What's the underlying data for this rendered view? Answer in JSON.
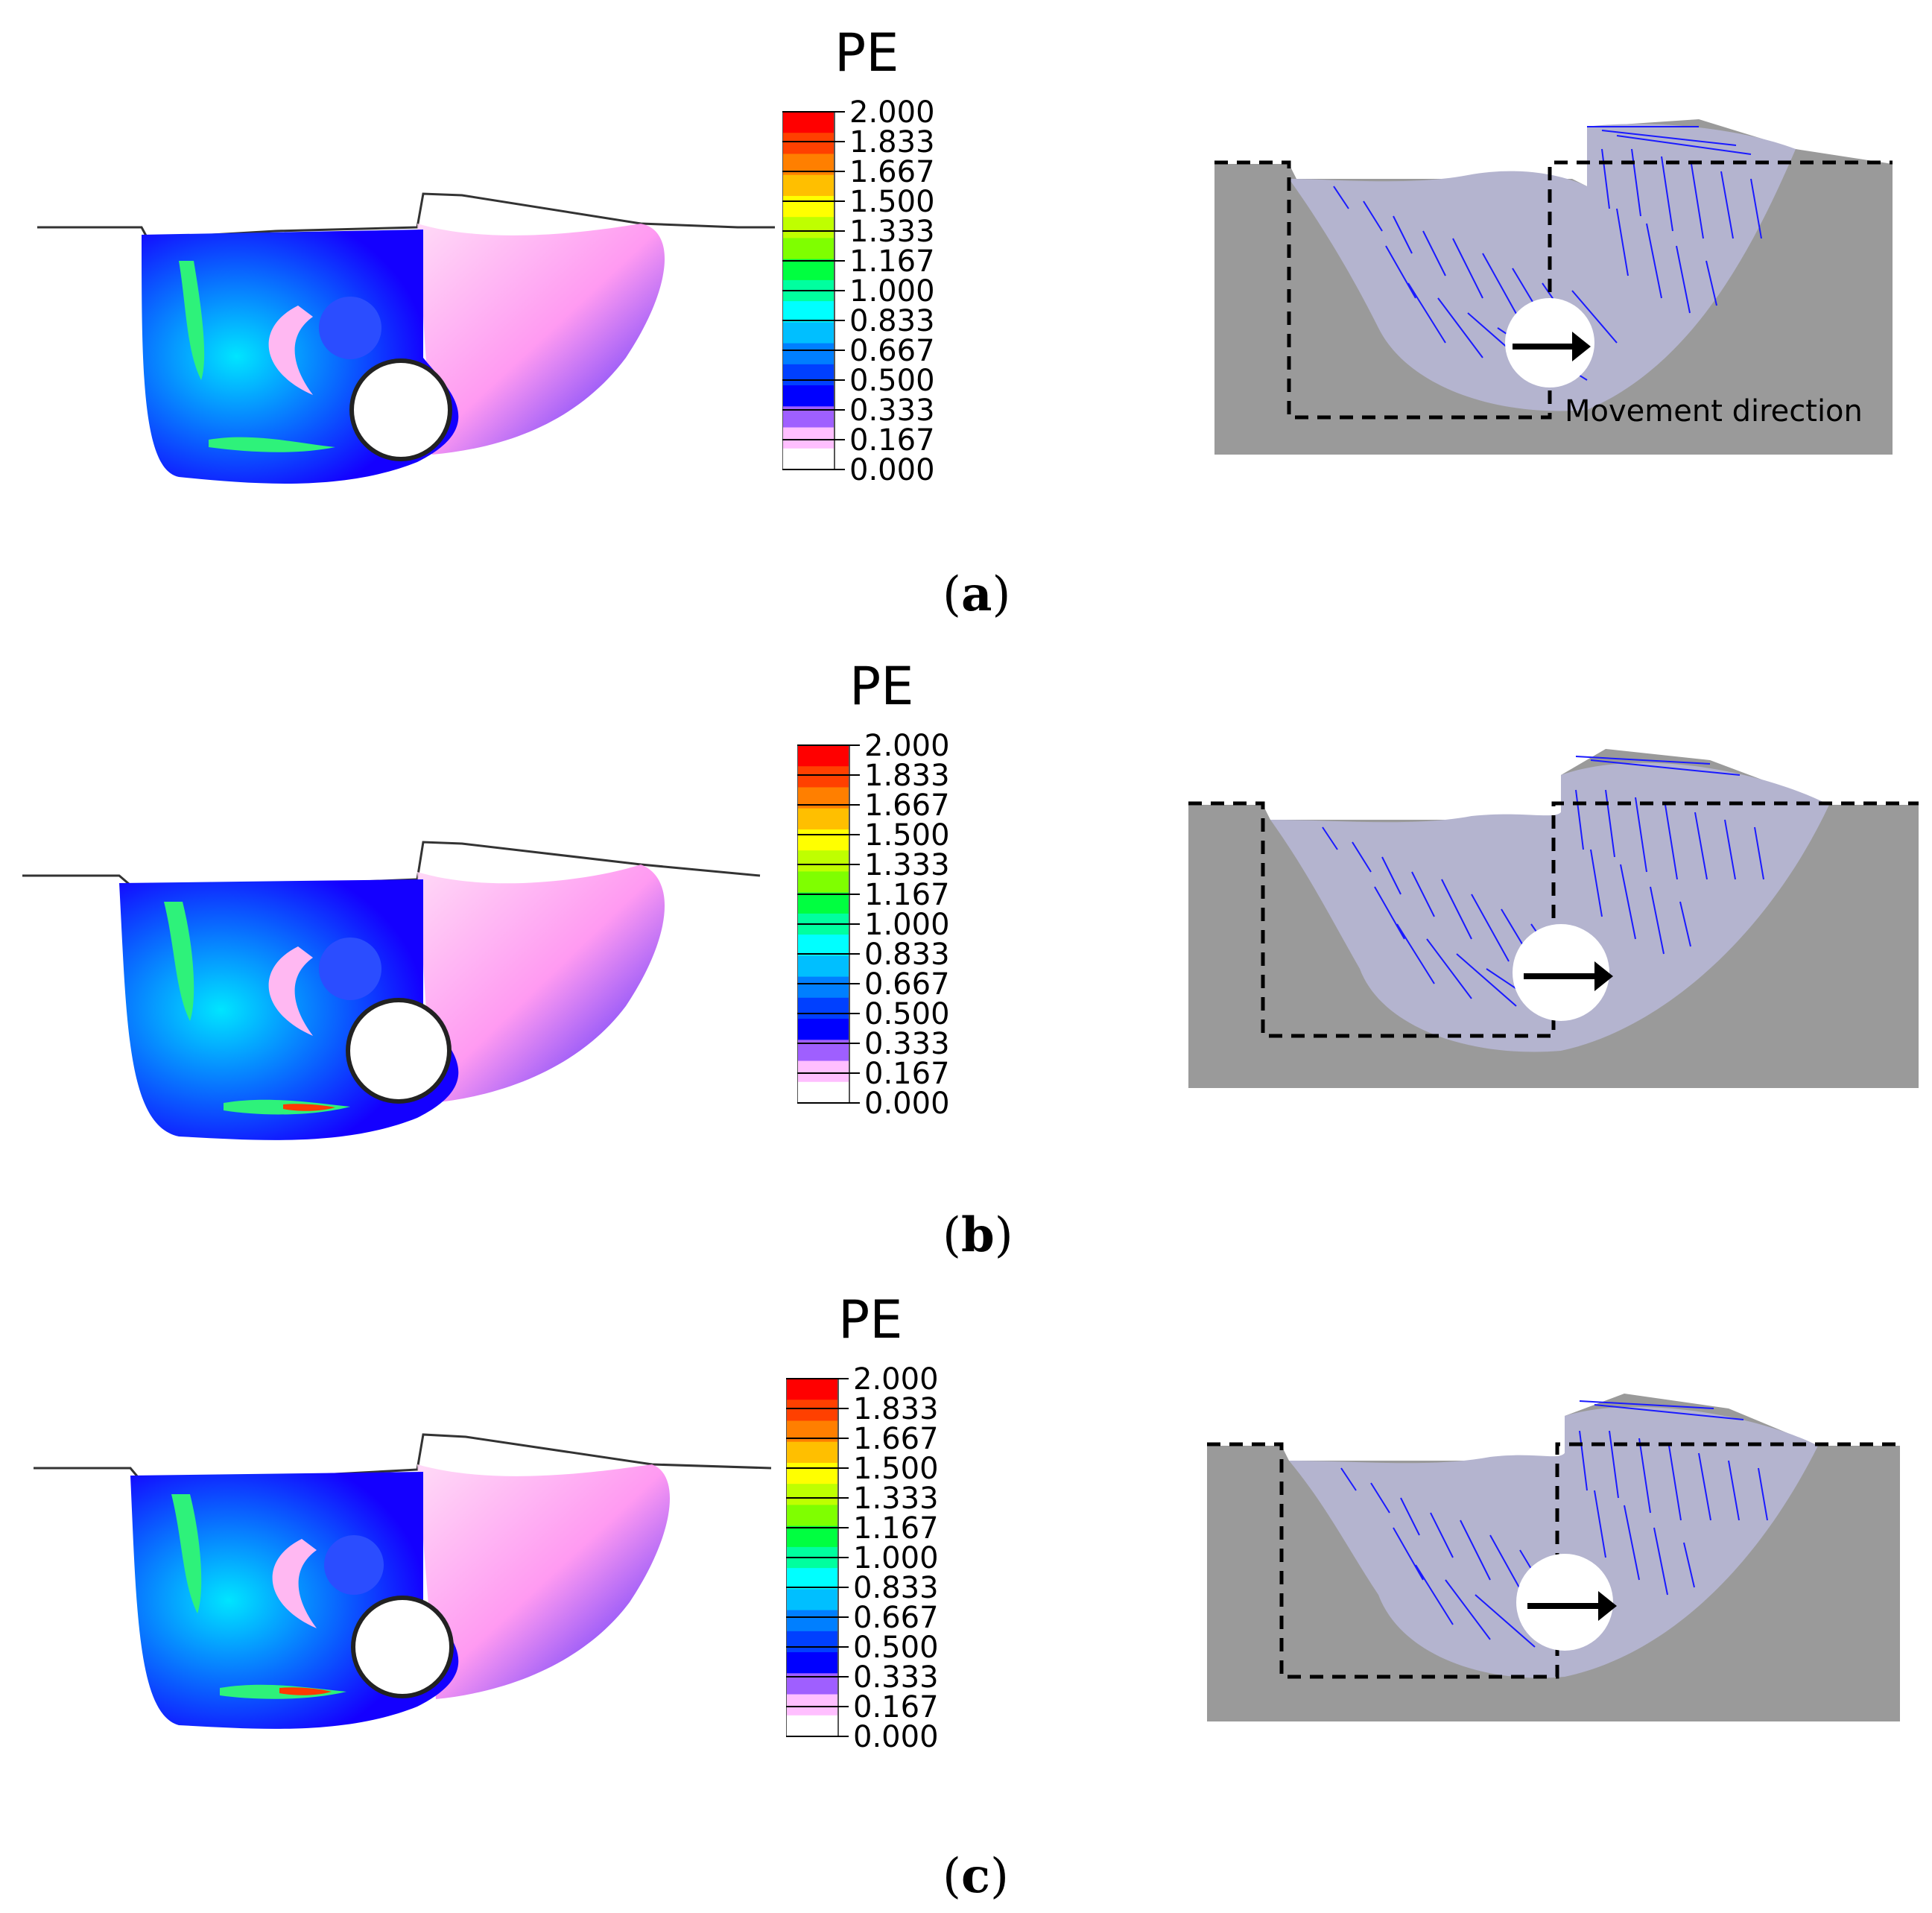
{
  "legend": {
    "title": "PE",
    "ticks": [
      "2.000",
      "1.833",
      "1.667",
      "1.500",
      "1.333",
      "1.167",
      "1.000",
      "0.833",
      "0.667",
      "0.500",
      "0.333",
      "0.167",
      "0.000"
    ],
    "band_colors": [
      "#ff0000",
      "#ff4000",
      "#ff7f00",
      "#ffbf00",
      "#ffff00",
      "#bfff00",
      "#7fff00",
      "#00ff40",
      "#00ff9f",
      "#00ffff",
      "#00bfff",
      "#007fff",
      "#0040ff",
      "#0000ff",
      "#9f5fff",
      "#ffbfff",
      "#ffffff"
    ]
  },
  "annotation": {
    "movement_label": "Movement direction"
  },
  "panels": [
    {
      "label_open": "(",
      "label_letter": "a",
      "label_close": ")"
    },
    {
      "label_open": "(",
      "label_letter": "b",
      "label_close": ")"
    },
    {
      "label_open": "(",
      "label_letter": "c",
      "label_close": ")"
    }
  ],
  "colors": {
    "soil_gray": "#9a9a9a",
    "arrow_blue": "#1a1aff",
    "trench_dash": "#000000"
  }
}
